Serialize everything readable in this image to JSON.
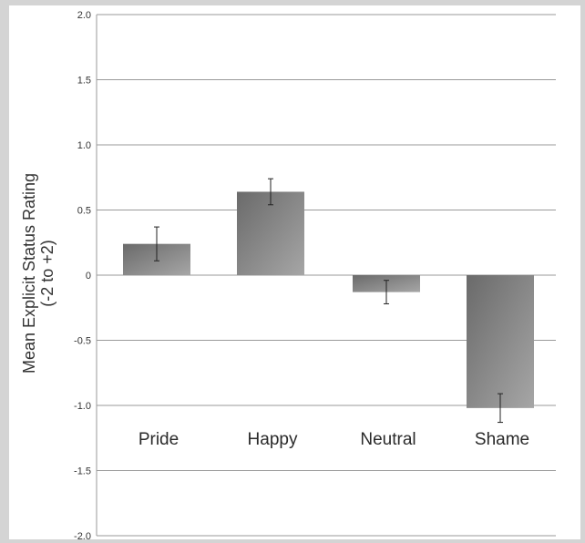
{
  "chart_data": {
    "type": "bar",
    "categories": [
      "Pride",
      "Happy",
      "Neutral",
      "Shame"
    ],
    "values": [
      0.24,
      0.64,
      -0.13,
      -1.02
    ],
    "errors": [
      0.13,
      0.1,
      0.09,
      0.11
    ],
    "ylabel_line1": "Mean Explicit Status Rating",
    "ylabel_line2": "(-2 to +2)",
    "ylim": [
      -2.0,
      2.0
    ],
    "yticks": [
      2.0,
      1.5,
      1.0,
      0.5,
      0,
      -0.5,
      -1.0,
      -1.5,
      -2.0
    ],
    "ytick_labels": [
      "2.0",
      "1.5",
      "1.0",
      "0.5",
      "0",
      "-0.5",
      "-1.0",
      "-1.5",
      "-2.0"
    ],
    "grid": true,
    "bar_color_dark": "#6a6a6a",
    "bar_color_light": "#a6a6a6",
    "grid_color": "#9a9a9a",
    "frame_color": "#d4d4d4"
  }
}
